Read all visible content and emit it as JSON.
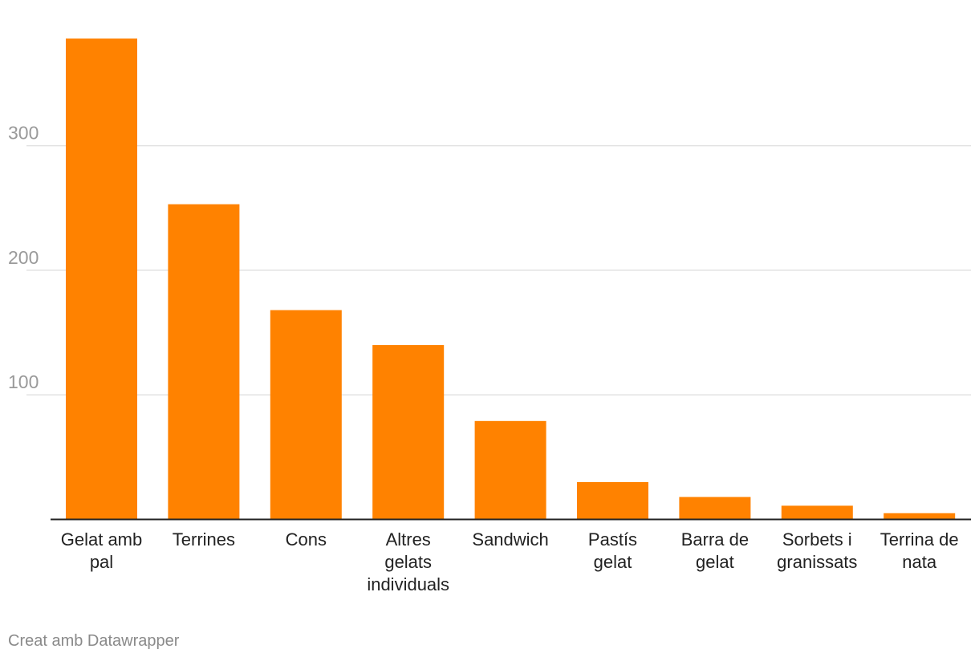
{
  "chart_data": {
    "type": "bar",
    "categories": [
      "Gelat amb pal",
      "Terrines",
      "Cons",
      "Altres gelats individuals",
      "Sandwich",
      "Pastís gelat",
      "Barra de gelat",
      "Sorbets i granissats",
      "Terrina de nata"
    ],
    "values": [
      386,
      253,
      168,
      140,
      79,
      30,
      18,
      11,
      5
    ],
    "yticks": [
      100,
      200,
      300
    ],
    "ylim": [
      0,
      400
    ],
    "grid": true,
    "bar_color": "#ff8200"
  },
  "credit": "Creat amb Datawrapper"
}
